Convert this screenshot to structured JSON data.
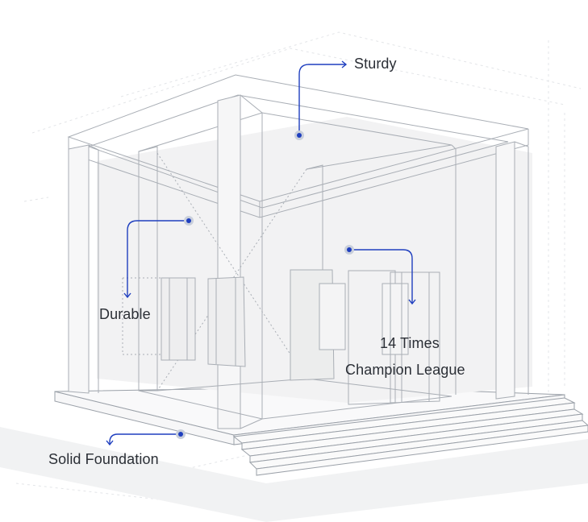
{
  "callouts": {
    "sturdy": {
      "label": "Sturdy"
    },
    "durable": {
      "label": "Durable"
    },
    "championship": {
      "line1": "14 Times",
      "line2": "Champion League"
    },
    "foundation": {
      "label": "Solid Foundation"
    }
  },
  "colors": {
    "accent": "#1f3fbf",
    "dot_halo": "#c9cfdb",
    "wire": "#9aa0a8",
    "wire_light": "#d9dce1",
    "fill": "#f3f3f4",
    "text": "#2b2f36"
  },
  "icons": [
    "callout-dot-icon",
    "arrow-head-icon"
  ]
}
